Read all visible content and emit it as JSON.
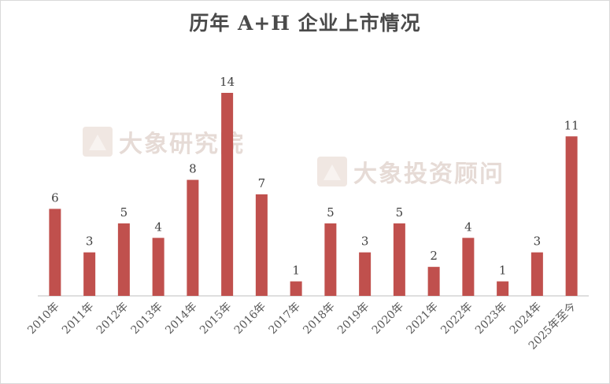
{
  "chart_data": {
    "type": "bar",
    "title": "历年 A+H 企业上市情况",
    "categories": [
      "2010年",
      "2011年",
      "2012年",
      "2013年",
      "2014年",
      "2015年",
      "2016年",
      "2017年",
      "2018年",
      "2019年",
      "2020年",
      "2021年",
      "2022年",
      "2023年",
      "2024年",
      "2025年至今"
    ],
    "values": [
      6,
      3,
      5,
      4,
      8,
      14,
      7,
      1,
      5,
      3,
      5,
      2,
      4,
      1,
      3,
      11
    ],
    "xlabel": "",
    "ylabel": "",
    "ylim": [
      0,
      14
    ],
    "grid": false,
    "legend": "none",
    "bar_color": "#c0504d"
  },
  "watermarks": [
    {
      "text": "大象研究院",
      "icon": "elephant-logo-icon"
    },
    {
      "text": "大象投资顾问",
      "icon": "elephant-logo-icon"
    }
  ]
}
